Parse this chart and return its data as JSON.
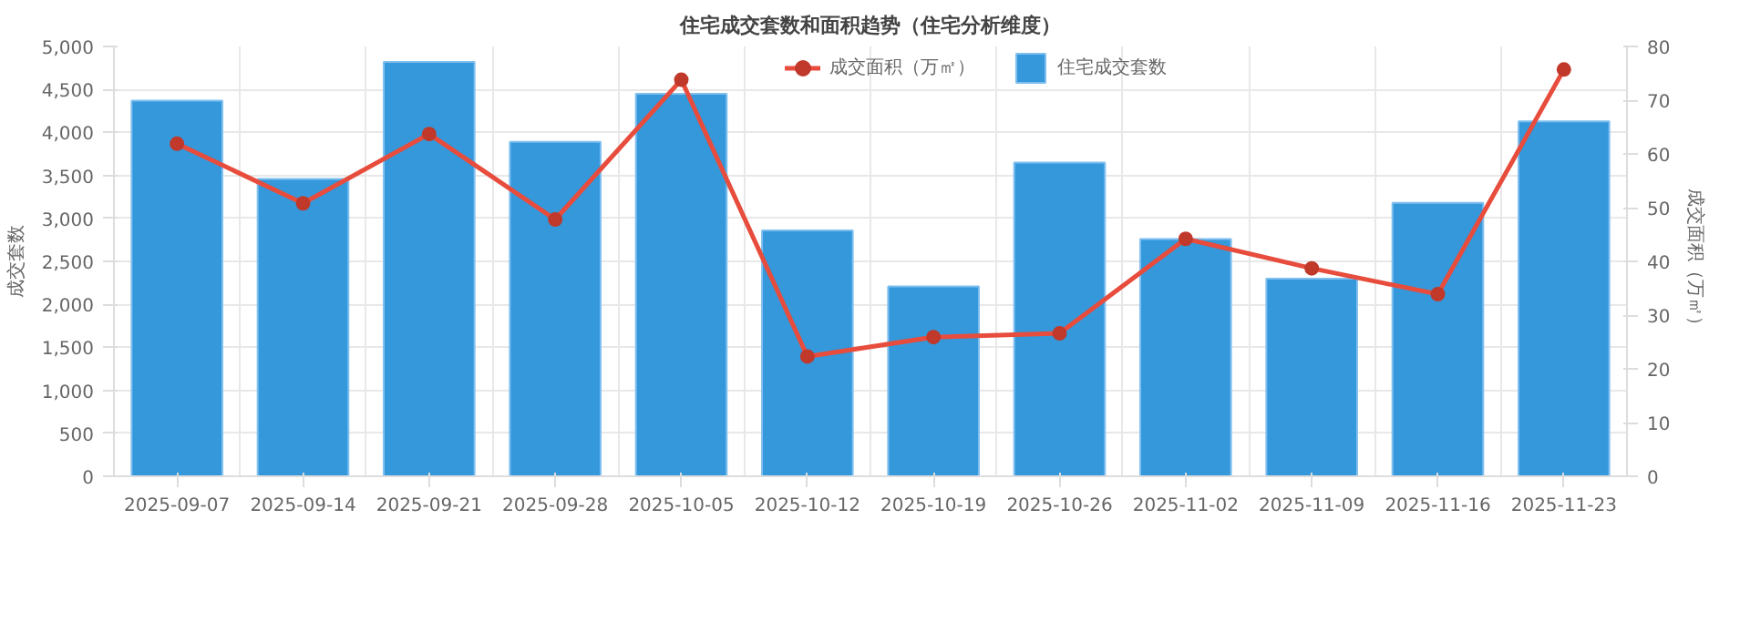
{
  "chart_data": {
    "type": "bar",
    "title": "住宅成交套数和面积趋势（住宅分析维度）",
    "categories": [
      "2025-09-07",
      "2025-09-14",
      "2025-09-21",
      "2025-09-28",
      "2025-10-05",
      "2025-10-12",
      "2025-10-19",
      "2025-10-26",
      "2025-11-02",
      "2025-11-09",
      "2025-11-16",
      "2025-11-23"
    ],
    "series": [
      {
        "name": "成交面积（万㎡）",
        "type": "line",
        "axis": "y2",
        "color": "#e74c3c",
        "marker": "circle",
        "values": [
          61.9,
          50.8,
          63.7,
          47.8,
          73.8,
          22.3,
          25.9,
          26.6,
          44.2,
          38.7,
          33.9,
          75.7
        ]
      },
      {
        "name": "住宅成交套数",
        "color": "#3498db",
        "values": [
          4370,
          3460,
          4820,
          3890,
          4450,
          2860,
          2210,
          3650,
          2760,
          2300,
          3180,
          4130
        ]
      }
    ],
    "ylabel": "成交套数",
    "y2label": "成交面积（万㎡）",
    "ylim": [
      0,
      5000
    ],
    "yticks": [
      0,
      {
        "value": 500,
        "label": "500"
      },
      {
        "value": 1000,
        "label": "1,000"
      },
      {
        "value": 1500,
        "label": "1,500"
      },
      {
        "value": 2000,
        "label": "2,000"
      },
      {
        "value": 2500,
        "label": "2,500"
      },
      {
        "value": 3000,
        "label": "3,000"
      },
      {
        "value": 3500,
        "label": "3,500"
      },
      {
        "value": 4000,
        "label": "4,000"
      },
      {
        "value": 4500,
        "label": "4,500"
      },
      {
        "value": 5000,
        "label": "5,000"
      }
    ],
    "y2lim": [
      0,
      80
    ],
    "y2ticks": [
      0,
      10,
      20,
      30,
      40,
      50,
      60,
      70,
      80
    ],
    "grid": true,
    "legend": "top"
  }
}
